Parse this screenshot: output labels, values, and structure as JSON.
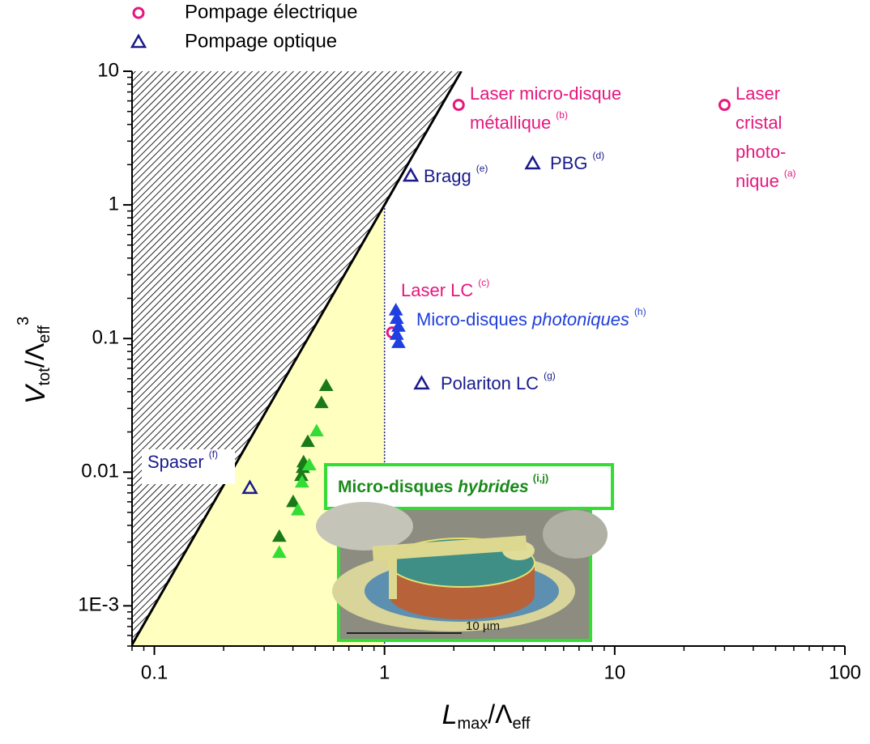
{
  "chart_data": {
    "type": "scatter",
    "x_label": {
      "main": "L",
      "sub": "max",
      "mid": "/Λ",
      "sub2": "eff"
    },
    "y_label": {
      "main": "V",
      "sub": "tot",
      "mid": "/Λ",
      "sub2": "eff",
      "sup": "3"
    },
    "log_x": true,
    "log_y": true,
    "xlim": [
      0.08,
      100
    ],
    "ylim": [
      0.0005,
      10
    ],
    "xticks": [
      0.1,
      1,
      10,
      100
    ],
    "yticks": [
      {
        "value": 0.001,
        "label": "1E-3"
      },
      0.01,
      0.1,
      1,
      10
    ],
    "series": [
      {
        "name": "Pompage électrique",
        "marker": "open-circle",
        "color": "#e5177e",
        "x": [
          2.1,
          30,
          1.08
        ],
        "values": [
          5.6,
          5.6,
          0.111
        ]
      },
      {
        "name": "Pompage optique",
        "marker": "open-triangle",
        "color": "#1a1a8c",
        "x": [
          1.3,
          4.4,
          1.45,
          0.26
        ],
        "values": [
          1.65,
          2.04,
          0.046,
          0.0076
        ]
      },
      {
        "marker": "triangle",
        "color": "#1f3fe0",
        "x": [
          1.12,
          1.13,
          1.15,
          1.13,
          1.15
        ],
        "values": [
          0.163,
          0.141,
          0.123,
          0.107,
          0.093
        ]
      },
      {
        "marker": "triangle",
        "color": "#1a7a1a",
        "x": [
          0.558,
          0.532,
          0.464,
          0.445,
          0.442,
          0.435,
          0.401,
          0.349
        ],
        "values": [
          0.0443,
          0.033,
          0.0169,
          0.0119,
          0.0108,
          0.0094,
          0.006,
          0.0033
        ]
      },
      {
        "marker": "triangle",
        "color": "#33dd33",
        "x": [
          0.507,
          0.471,
          0.438,
          0.421,
          0.349
        ],
        "values": [
          0.0203,
          0.0113,
          0.0084,
          0.0052,
          0.0025
        ]
      }
    ],
    "annotations": [
      {
        "lines": [
          "Laser micro-disque",
          "métallique"
        ],
        "ref": "(b)",
        "color": "#e5177e"
      },
      {
        "lines": [
          "Laser",
          "cristal",
          "photo-",
          "nique"
        ],
        "ref": "(a)",
        "color": "#e5177e"
      },
      {
        "lines": [
          "Bragg"
        ],
        "ref": "(e)",
        "color": "#1a1a8c"
      },
      {
        "lines": [
          "PBG"
        ],
        "ref": "(d)",
        "color": "#1a1a8c"
      },
      {
        "lines": [
          "Laser LC"
        ],
        "ref": "(c)",
        "color": "#e5177e"
      },
      {
        "lines": [
          "Micro-disques "
        ],
        "italic": "photoniques",
        "ref": "(h)",
        "color": "#1f3fd8"
      },
      {
        "lines": [
          "Polariton LC"
        ],
        "ref": "(g)",
        "color": "#1a1a8c"
      },
      {
        "lines": [
          "Spaser"
        ],
        "ref": "(f)",
        "color": "#1a1a8c"
      }
    ],
    "inset": {
      "title": "Micro-disques ",
      "italic": "hybrides",
      "ref": "(i,j)",
      "color": "#1a8a1a",
      "scale_bar": "10 µm"
    }
  }
}
